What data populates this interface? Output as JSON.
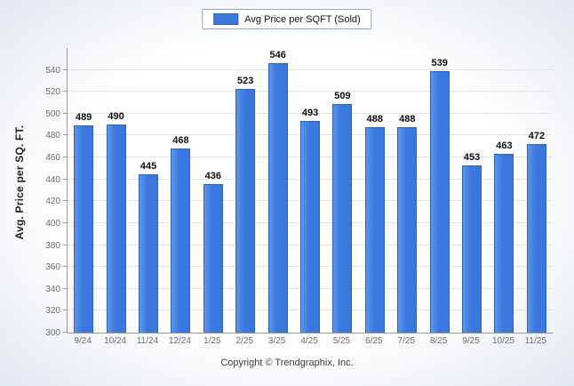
{
  "chart_data": {
    "type": "bar",
    "title": "",
    "legend": "Avg Price per SQFT (Sold)",
    "legend_position": "top",
    "categories": [
      "9/24",
      "10/24",
      "11/24",
      "12/24",
      "1/25",
      "2/25",
      "3/25",
      "4/25",
      "5/25",
      "6/25",
      "7/25",
      "8/25",
      "9/25",
      "10/25",
      "11/25"
    ],
    "values": [
      489,
      490,
      445,
      468,
      436,
      523,
      546,
      493,
      509,
      488,
      488,
      539,
      453,
      463,
      472
    ],
    "xlabel": "",
    "ylabel": "Avg. Price per SQ. FT.",
    "ylim": [
      300,
      560
    ],
    "yticks": [
      300,
      320,
      340,
      360,
      380,
      400,
      420,
      440,
      460,
      480,
      500,
      520,
      540
    ],
    "grid": "horizontal",
    "bar_color_main": "#3a78dd",
    "bar_color_edge": "#2d62bd",
    "footer": "Copyright © Trendgraphix, Inc."
  }
}
